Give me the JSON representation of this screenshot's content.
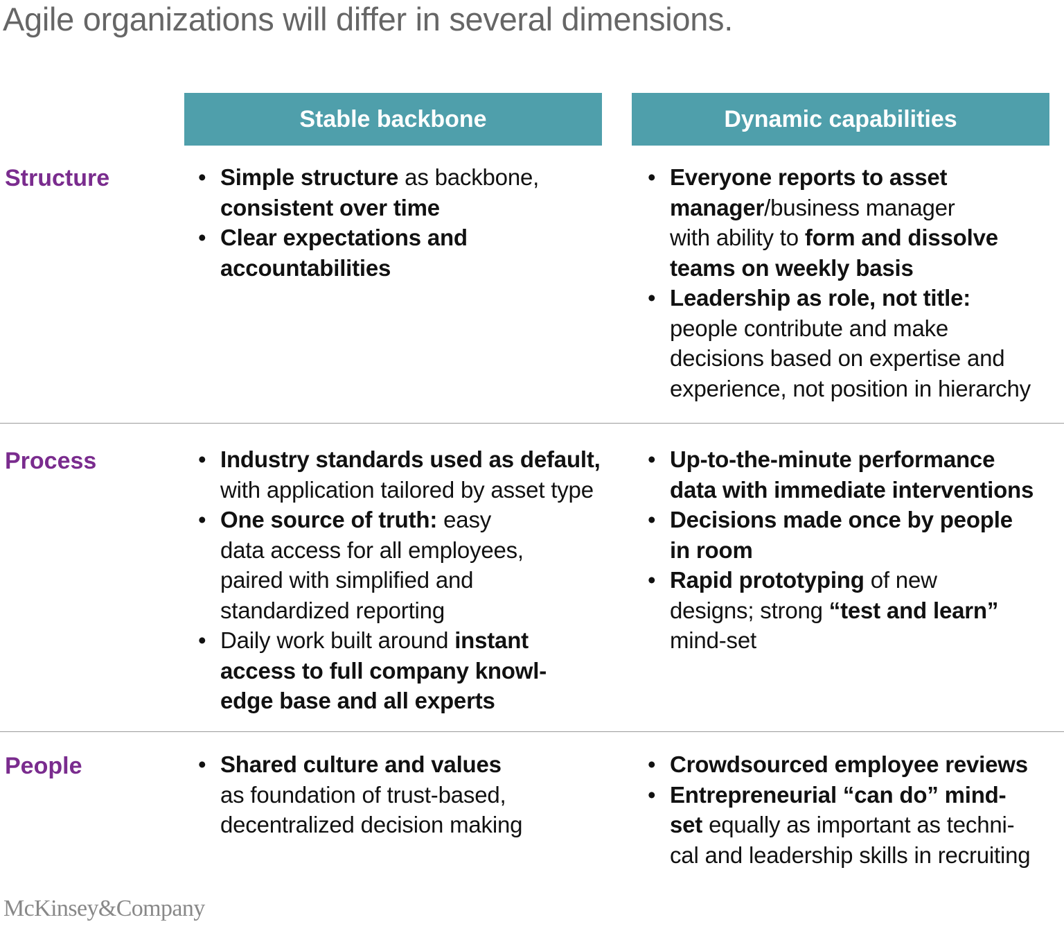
{
  "title": "Agile organizations will differ in several dimensions.",
  "columns": [
    "Stable backbone",
    "Dynamic capabilities"
  ],
  "rows": [
    {
      "label": "Structure",
      "stable": [
        [
          {
            "t": "Simple structure",
            "b": true
          },
          {
            "t": " as backbone,",
            "b": false
          },
          {
            "t": "\nconsistent over time",
            "b": true
          }
        ],
        [
          {
            "t": "Clear expectations and",
            "b": true
          },
          {
            "t": "\naccountabilities",
            "b": true
          }
        ]
      ],
      "dynamic": [
        [
          {
            "t": "Everyone reports to asset",
            "b": true
          },
          {
            "t": "\nmanager",
            "b": true
          },
          {
            "t": "/business manager",
            "b": false
          },
          {
            "t": "\nwith ability to ",
            "b": false
          },
          {
            "t": "form and dissolve",
            "b": true
          },
          {
            "t": "\nteams on weekly basis",
            "b": true
          }
        ],
        [
          {
            "t": "Leadership as role, not title:",
            "b": true
          },
          {
            "t": "\npeople contribute and make\ndecisions based on expertise and\nexperience, not position in hierarchy",
            "b": false
          }
        ]
      ]
    },
    {
      "label": "Process",
      "stable": [
        [
          {
            "t": "Industry standards used as default,",
            "b": true
          },
          {
            "t": "\nwith application tailored by asset type",
            "b": false
          }
        ],
        [
          {
            "t": "One source of truth:",
            "b": true
          },
          {
            "t": " easy\ndata access for all employees,\npaired with simplified and\nstandardized reporting",
            "b": false
          }
        ],
        [
          {
            "t": "Daily work built around ",
            "b": false
          },
          {
            "t": "instant",
            "b": true
          },
          {
            "t": "\naccess to full company knowl-\nedge base and all experts",
            "b": true
          }
        ]
      ],
      "dynamic": [
        [
          {
            "t": "Up-to-the-minute performance\ndata with immediate interventions",
            "b": true
          }
        ],
        [
          {
            "t": "Decisions made once by people\nin room",
            "b": true
          }
        ],
        [
          {
            "t": "Rapid prototyping",
            "b": true
          },
          {
            "t": " of new\ndesigns; strong ",
            "b": false
          },
          {
            "t": "“test and learn”",
            "b": true
          },
          {
            "t": "\nmind-set",
            "b": false
          }
        ]
      ]
    },
    {
      "label": "People",
      "stable": [
        [
          {
            "t": "Shared culture and values",
            "b": true
          },
          {
            "t": "\nas foundation of trust-based,\ndecentralized decision making",
            "b": false
          }
        ]
      ],
      "dynamic": [
        [
          {
            "t": "Crowdsourced employee reviews",
            "b": true
          }
        ],
        [
          {
            "t": "Entrepreneurial “can do” mind-\nset",
            "b": true
          },
          {
            "t": " equally as important as techni-\ncal and leadership skills in recruiting",
            "b": false
          }
        ]
      ]
    }
  ],
  "logo": "McKinsey&Company",
  "colors": {
    "header_bg": "#4f9fab",
    "row_label": "#7a2c8e",
    "title": "#666666"
  }
}
